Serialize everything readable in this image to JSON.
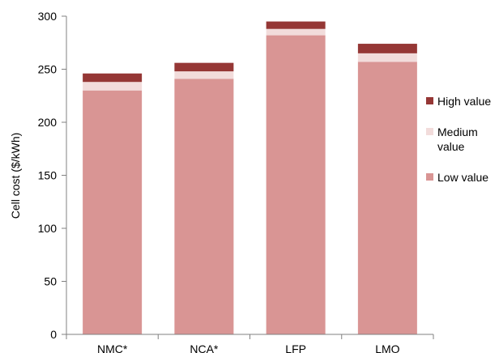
{
  "chart_data": {
    "type": "bar",
    "stacked": true,
    "categories": [
      "NMC*",
      "NCA*",
      "LFP",
      "LMO"
    ],
    "series": [
      {
        "name": "Low value",
        "values": [
          230,
          241,
          282,
          257
        ],
        "color": "#d99594"
      },
      {
        "name": "Medium value",
        "values": [
          8,
          7,
          6,
          8
        ],
        "color": "#f2dcdb"
      },
      {
        "name": "High value",
        "values": [
          8,
          8,
          7,
          9
        ],
        "color": "#953735"
      }
    ],
    "ylabel": "Cell cost ($/kWh)",
    "xlabel": "",
    "ylim": [
      0,
      300
    ],
    "yticks": [
      0,
      50,
      100,
      150,
      200,
      250,
      300
    ],
    "grid": false,
    "legend_position": "right"
  },
  "legend": {
    "items": [
      {
        "label": "High value",
        "color": "#953735"
      },
      {
        "label": "Medium value",
        "color": "#f2dcdb"
      },
      {
        "label": "Low value",
        "color": "#d99594"
      }
    ]
  }
}
